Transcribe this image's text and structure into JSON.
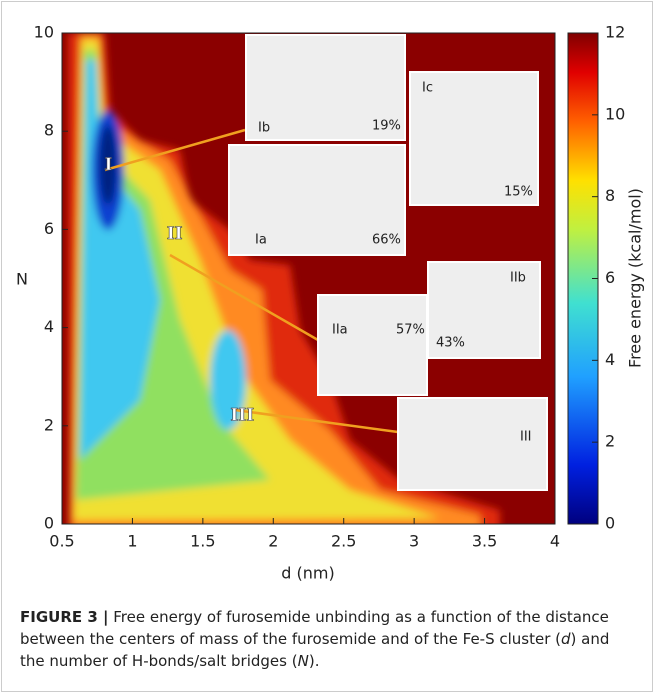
{
  "chart_data": {
    "type": "heatmap",
    "xlabel": "d (nm)",
    "ylabel": "N",
    "xlim": [
      0.5,
      4
    ],
    "ylim": [
      0,
      10
    ],
    "xticks": [
      0.5,
      1,
      1.5,
      2,
      2.5,
      3,
      3.5,
      4
    ],
    "yticks": [
      0,
      2,
      4,
      6,
      8,
      10
    ],
    "colorbar": {
      "label": "Free energy (kcal/mol)",
      "lim": [
        0,
        12
      ],
      "ticks": [
        0,
        2,
        4,
        6,
        8,
        10,
        12
      ]
    },
    "annotations": [
      {
        "label": "I",
        "x": 0.83,
        "y": 7.3
      },
      {
        "label": "II",
        "x": 1.3,
        "y": 5.9
      },
      {
        "label": "III",
        "x": 1.78,
        "y": 2.2
      }
    ],
    "insets": [
      {
        "name": "Ib",
        "share": "19%"
      },
      {
        "name": "Ic",
        "share": "15%"
      },
      {
        "name": "Ia",
        "share": "66%"
      },
      {
        "name": "IIb",
        "share": "43%"
      },
      {
        "name": "IIa",
        "share": "57%"
      },
      {
        "name": "III"
      }
    ]
  },
  "caption": {
    "label": "FIGURE 3 |",
    "text1": "Free energy of furosemide unbinding as a function of the distance between the centers of mass of the furosemide and of the Fe-S cluster (",
    "d": "d",
    "text2": ") and the number of H-bonds/salt bridges (",
    "N": "N",
    "text3": ")."
  }
}
